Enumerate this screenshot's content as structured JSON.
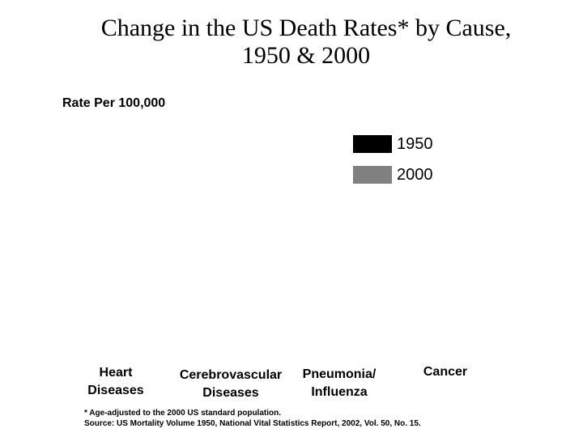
{
  "chart_data": {
    "type": "bar",
    "title": "Change in the US Death Rates* by Cause,\n1950 & 2000",
    "ylabel": "Rate Per 100,000",
    "categories": [
      "Heart\nDiseases",
      "Cerebrovascular\nDiseases",
      "Pneumonia/\nInfluenza",
      "Cancer"
    ],
    "series": [
      {
        "name": "1950",
        "color": "#000000"
      },
      {
        "name": "2000",
        "color": "#808080"
      }
    ],
    "legend_placement": "top-right",
    "grid": false
  },
  "footnote": {
    "line1": "* Age-adjusted to the 2000 US standard population.",
    "line2": "Source: US Mortality Volume 1950, National Vital Statistics Report, 2002, Vol. 50, No. 15."
  }
}
